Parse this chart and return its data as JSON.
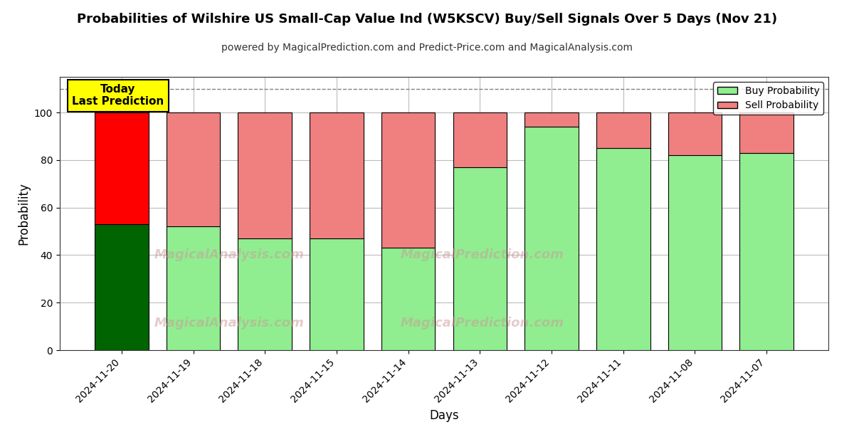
{
  "title": "Probabilities of Wilshire US Small-Cap Value Ind (W5KSCV) Buy/Sell Signals Over 5 Days (Nov 21)",
  "subtitle": "powered by MagicalPrediction.com and Predict-Price.com and MagicalAnalysis.com",
  "xlabel": "Days",
  "ylabel": "Probability",
  "legend_buy": "Buy Probability",
  "legend_sell": "Sell Probability",
  "annotation_text": "Today\nLast Prediction",
  "dates": [
    "2024-11-20",
    "2024-11-19",
    "2024-11-18",
    "2024-11-15",
    "2024-11-14",
    "2024-11-13",
    "2024-11-12",
    "2024-11-11",
    "2024-11-08",
    "2024-11-07"
  ],
  "buy_values": [
    53,
    52,
    47,
    47,
    43,
    77,
    94,
    85,
    82,
    83
  ],
  "sell_values": [
    47,
    48,
    53,
    53,
    57,
    23,
    6,
    15,
    18,
    17
  ],
  "buy_color_today": "#006400",
  "sell_color_today": "#FF0000",
  "buy_color_rest": "#90EE90",
  "sell_color_rest": "#F08080",
  "bar_edge_color": "#000000",
  "bar_width": 0.75,
  "ylim": [
    0,
    115
  ],
  "yticks": [
    0,
    20,
    40,
    60,
    80,
    100
  ],
  "dashed_line_y": 110,
  "background_color": "#FFFFFF",
  "grid_color": "#BBBBBB",
  "title_fontsize": 13,
  "subtitle_fontsize": 10,
  "label_fontsize": 12,
  "tick_fontsize": 10,
  "annotation_bbox_color": "#FFFF00",
  "annotation_fontsize": 11,
  "watermark1": "MagicalAnalysis.com",
  "watermark2": "MagicalPrediction.com",
  "watermark3": "MagicalAnalysis.com",
  "watermark4": "MagicalPrediction.com"
}
